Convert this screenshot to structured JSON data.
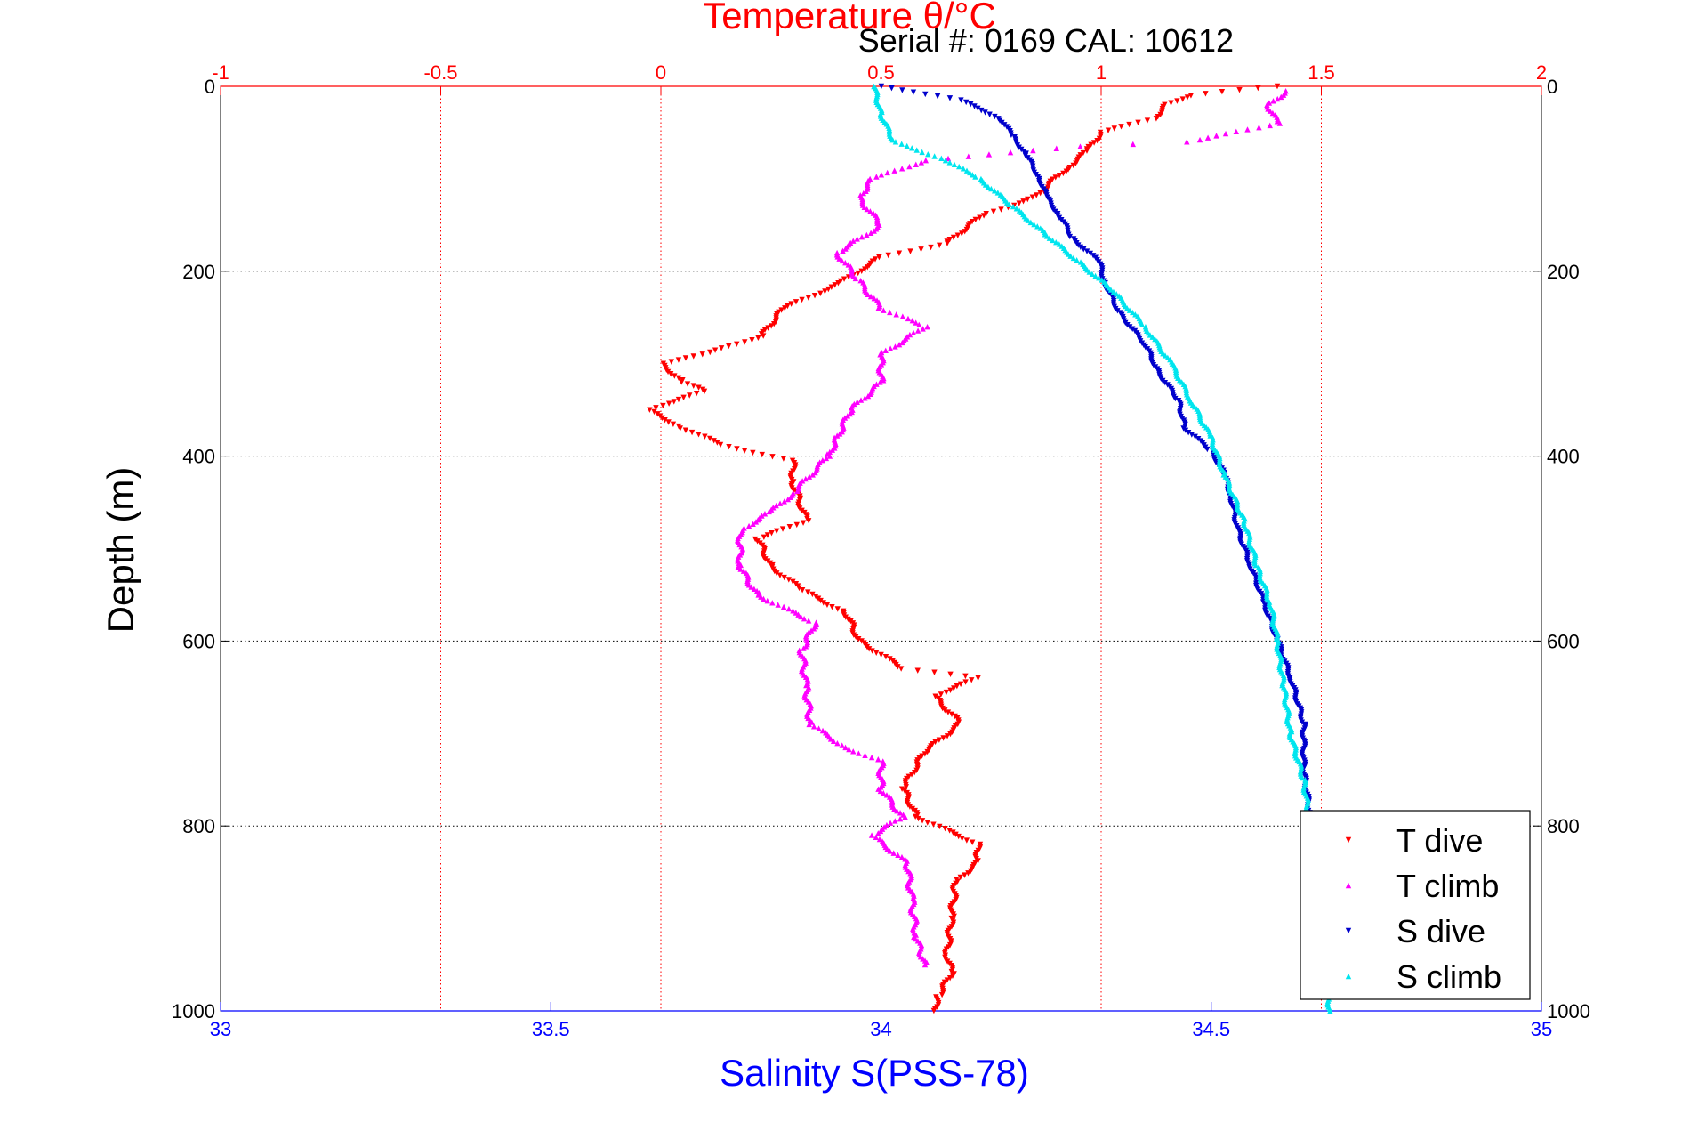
{
  "chart_data": {
    "type": "scatter",
    "top_title": "Temperature θ/°C",
    "serial_label": "Serial #: 0169 CAL: 10612",
    "ylabel": "Depth (m)",
    "xlabel_bottom": "Salinity S(PSS-78)",
    "y_axis": {
      "range": [
        0,
        1000
      ],
      "reversed": true,
      "ticks": [
        0,
        200,
        400,
        600,
        800,
        1000
      ]
    },
    "temp_axis": {
      "range": [
        -1,
        2
      ],
      "ticks": [
        -1,
        -0.5,
        0,
        0.5,
        1,
        1.5,
        2
      ],
      "tick_labels": [
        "-1",
        "-0.5",
        "0",
        "0.5",
        "1",
        "1.5",
        "2"
      ],
      "color": "#ff0000"
    },
    "sal_axis": {
      "range": [
        33,
        35
      ],
      "ticks": [
        33,
        33.5,
        34,
        34.5,
        35
      ],
      "tick_labels": [
        "33",
        "33.5",
        "34",
        "34.5",
        "35"
      ],
      "color": "#0000ff"
    },
    "grid": true,
    "legend": {
      "placement": "bottom-right"
    },
    "series": [
      {
        "name": "T dive",
        "axis": "temp",
        "color": "#ff0000",
        "points": [
          [
            1.4,
            0
          ],
          [
            1.2,
            10
          ],
          [
            1.15,
            20
          ],
          [
            1.12,
            35
          ],
          [
            1.0,
            50
          ],
          [
            0.97,
            70
          ],
          [
            0.92,
            90
          ],
          [
            0.85,
            120
          ],
          [
            0.73,
            140
          ],
          [
            0.65,
            170
          ],
          [
            0.5,
            185
          ],
          [
            0.45,
            200
          ],
          [
            0.4,
            215
          ],
          [
            0.28,
            240
          ],
          [
            0.23,
            270
          ],
          [
            0.1,
            290
          ],
          [
            0.0,
            300
          ],
          [
            0.05,
            320
          ],
          [
            0.1,
            330
          ],
          [
            -0.03,
            350
          ],
          [
            0.05,
            370
          ],
          [
            0.15,
            390
          ],
          [
            0.3,
            405
          ],
          [
            0.3,
            430
          ],
          [
            0.33,
            470
          ],
          [
            0.22,
            490
          ],
          [
            0.25,
            520
          ],
          [
            0.32,
            545
          ],
          [
            0.42,
            570
          ],
          [
            0.45,
            600
          ],
          [
            0.55,
            630
          ],
          [
            0.72,
            640
          ],
          [
            0.62,
            660
          ],
          [
            0.68,
            690
          ],
          [
            0.6,
            720
          ],
          [
            0.55,
            760
          ],
          [
            0.58,
            790
          ],
          [
            0.72,
            820
          ],
          [
            0.72,
            840
          ],
          [
            0.67,
            860
          ],
          [
            0.66,
            900
          ],
          [
            0.65,
            940
          ],
          [
            0.66,
            960
          ],
          [
            0.63,
            985
          ],
          [
            0.62,
            1000
          ]
        ]
      },
      {
        "name": "T climb",
        "axis": "temp",
        "color": "#ff00ff",
        "points": [
          [
            1.42,
            5
          ],
          [
            1.38,
            20
          ],
          [
            1.4,
            40
          ],
          [
            1.2,
            60
          ],
          [
            0.95,
            65
          ],
          [
            0.6,
            80
          ],
          [
            0.48,
            100
          ],
          [
            0.45,
            120
          ],
          [
            0.5,
            150
          ],
          [
            0.4,
            180
          ],
          [
            0.45,
            210
          ],
          [
            0.5,
            240
          ],
          [
            0.6,
            260
          ],
          [
            0.5,
            290
          ],
          [
            0.5,
            320
          ],
          [
            0.43,
            350
          ],
          [
            0.4,
            380
          ],
          [
            0.38,
            400
          ],
          [
            0.3,
            440
          ],
          [
            0.25,
            460
          ],
          [
            0.18,
            480
          ],
          [
            0.18,
            520
          ],
          [
            0.22,
            550
          ],
          [
            0.35,
            580
          ],
          [
            0.32,
            610
          ],
          [
            0.33,
            650
          ],
          [
            0.34,
            690
          ],
          [
            0.42,
            715
          ],
          [
            0.5,
            730
          ],
          [
            0.5,
            760
          ],
          [
            0.55,
            790
          ],
          [
            0.48,
            810
          ],
          [
            0.56,
            840
          ],
          [
            0.57,
            880
          ],
          [
            0.58,
            920
          ],
          [
            0.6,
            950
          ]
        ]
      },
      {
        "name": "S dive",
        "axis": "sal",
        "color": "#0000cc",
        "points": [
          [
            34.0,
            0
          ],
          [
            34.12,
            15
          ],
          [
            34.18,
            35
          ],
          [
            34.2,
            55
          ],
          [
            34.22,
            75
          ],
          [
            34.24,
            100
          ],
          [
            34.25,
            120
          ],
          [
            34.27,
            140
          ],
          [
            34.29,
            165
          ],
          [
            34.33,
            190
          ],
          [
            34.34,
            215
          ],
          [
            34.36,
            245
          ],
          [
            34.4,
            280
          ],
          [
            34.42,
            310
          ],
          [
            34.45,
            340
          ],
          [
            34.46,
            370
          ],
          [
            34.5,
            395
          ],
          [
            34.52,
            420
          ],
          [
            34.53,
            445
          ],
          [
            34.54,
            480
          ],
          [
            34.56,
            520
          ],
          [
            34.58,
            560
          ],
          [
            34.6,
            600
          ],
          [
            34.62,
            640
          ],
          [
            34.64,
            690
          ],
          [
            34.64,
            740
          ],
          [
            34.65,
            790
          ]
        ]
      },
      {
        "name": "S climb",
        "axis": "sal",
        "color": "#00e5ee",
        "points": [
          [
            33.99,
            0
          ],
          [
            34.0,
            30
          ],
          [
            34.02,
            60
          ],
          [
            34.1,
            80
          ],
          [
            34.15,
            100
          ],
          [
            34.2,
            130
          ],
          [
            34.25,
            160
          ],
          [
            34.3,
            190
          ],
          [
            34.35,
            220
          ],
          [
            34.4,
            260
          ],
          [
            34.44,
            300
          ],
          [
            34.47,
            340
          ],
          [
            34.5,
            380
          ],
          [
            34.52,
            420
          ],
          [
            34.55,
            470
          ],
          [
            34.57,
            520
          ],
          [
            34.59,
            560
          ],
          [
            34.6,
            600
          ],
          [
            34.61,
            650
          ],
          [
            34.62,
            700
          ],
          [
            34.64,
            750
          ],
          [
            34.65,
            800
          ],
          [
            34.66,
            850
          ],
          [
            34.67,
            900
          ],
          [
            34.67,
            950
          ],
          [
            34.68,
            1000
          ]
        ]
      }
    ]
  }
}
